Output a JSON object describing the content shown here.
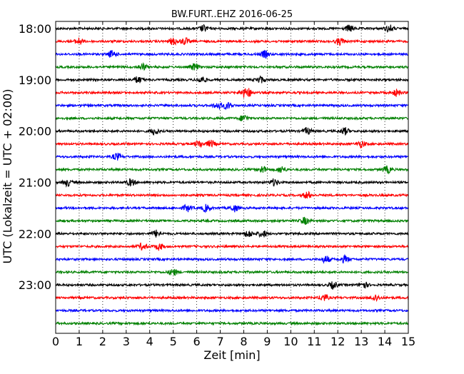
{
  "chart_data": {
    "type": "line",
    "title": "BW.FURT..EHZ 2016-06-25",
    "xlabel": "Zeit  [min]",
    "ylabel": "UTC (Lokalzeit = UTC + 02:00)",
    "xlim": [
      0,
      15
    ],
    "x_ticks": [
      "0",
      "1",
      "2",
      "3",
      "4",
      "5",
      "6",
      "7",
      "8",
      "9",
      "10",
      "11",
      "12",
      "13",
      "14",
      "15"
    ],
    "y_tick_labels": [
      "18:00",
      "19:00",
      "20:00",
      "21:00",
      "22:00",
      "23:00"
    ],
    "grid": true,
    "line_colors": [
      "#000000",
      "#ff0000",
      "#0000ff",
      "#008000"
    ],
    "traces": [
      {
        "start": "18:00",
        "bursts": [
          6.3,
          12.5,
          14.2
        ]
      },
      {
        "start": "18:15",
        "bursts": [
          1.0,
          5.0,
          5.5,
          12.1
        ]
      },
      {
        "start": "18:30",
        "bursts": [
          2.4,
          8.9
        ]
      },
      {
        "start": "18:45",
        "bursts": [
          3.7,
          5.9
        ]
      },
      {
        "start": "19:00",
        "bursts": [
          3.5,
          6.2,
          8.7
        ]
      },
      {
        "start": "19:15",
        "bursts": [
          8.0,
          8.2,
          14.5
        ]
      },
      {
        "start": "19:30",
        "bursts": [
          6.9,
          7.3
        ]
      },
      {
        "start": "19:45",
        "bursts": [
          8.0
        ]
      },
      {
        "start": "20:00",
        "bursts": [
          4.2,
          10.7,
          12.3
        ]
      },
      {
        "start": "20:15",
        "bursts": [
          6.1,
          6.6,
          13.0
        ]
      },
      {
        "start": "20:30",
        "bursts": [
          2.6
        ]
      },
      {
        "start": "20:45",
        "bursts": [
          8.8,
          9.6,
          14.1
        ]
      },
      {
        "start": "21:00",
        "bursts": [
          0.5,
          3.2,
          9.3
        ]
      },
      {
        "start": "21:15",
        "bursts": [
          10.7
        ]
      },
      {
        "start": "21:30",
        "bursts": [
          5.6,
          6.4,
          7.6
        ]
      },
      {
        "start": "21:45",
        "bursts": [
          10.6
        ]
      },
      {
        "start": "22:00",
        "bursts": [
          4.3,
          8.2,
          8.8
        ]
      },
      {
        "start": "22:15",
        "bursts": [
          3.7,
          4.4
        ]
      },
      {
        "start": "22:30",
        "bursts": [
          11.5,
          12.3
        ]
      },
      {
        "start": "22:45",
        "bursts": [
          5.0
        ]
      },
      {
        "start": "23:00",
        "bursts": [
          11.8,
          13.1
        ]
      },
      {
        "start": "23:15",
        "bursts": [
          11.4,
          13.6
        ]
      },
      {
        "start": "23:30",
        "bursts": []
      },
      {
        "start": "23:45",
        "bursts": []
      }
    ]
  }
}
